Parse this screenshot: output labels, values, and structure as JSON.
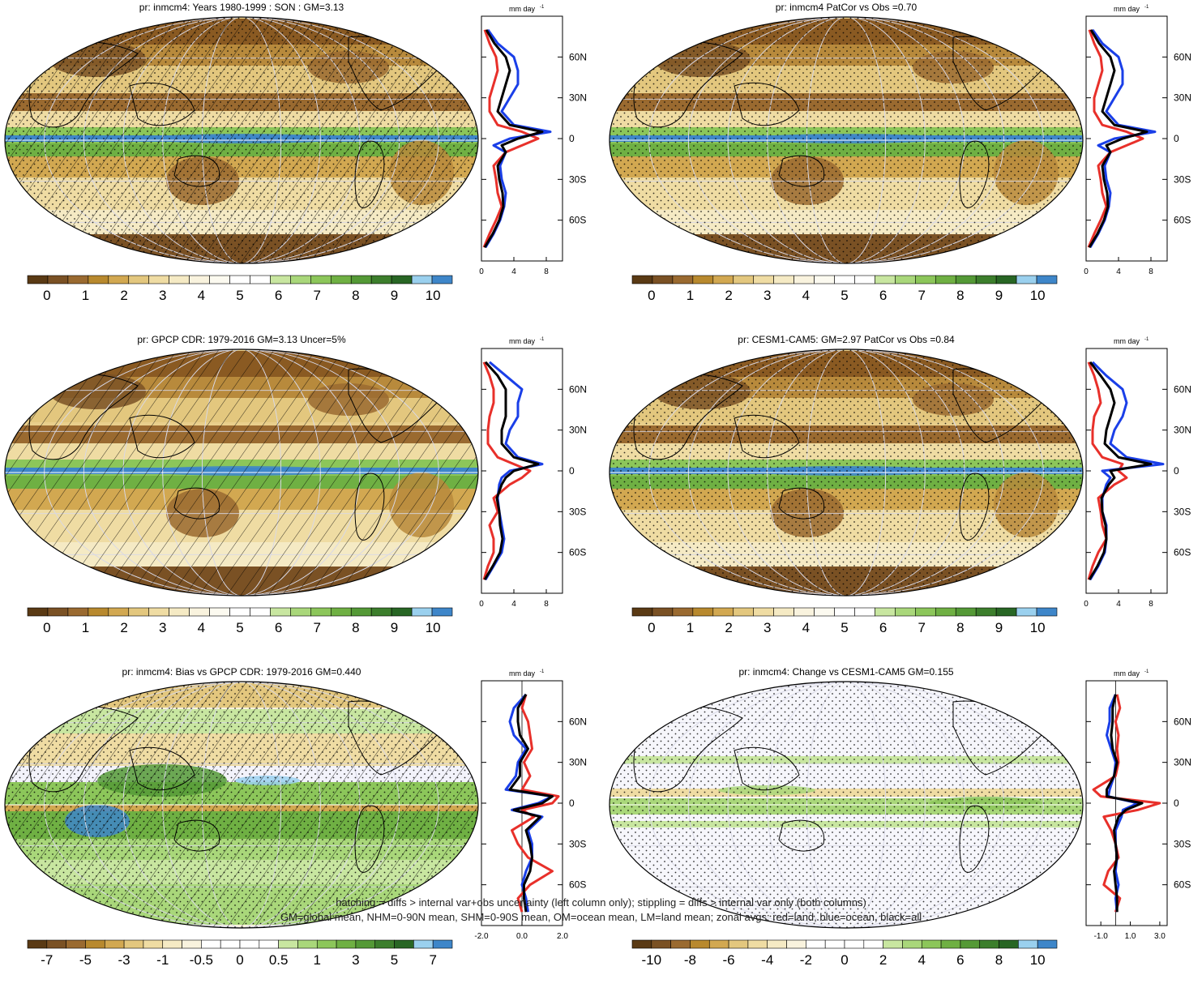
{
  "panels": [
    {
      "title": "pr: inmcm4: Years 1980-1999 : SON : GM=3.13",
      "map_style": "precip",
      "overlay": "hatch+stipple",
      "cb_labels": [
        "0",
        "1",
        "2",
        "3",
        "4",
        "5",
        "6",
        "7",
        "8",
        "9",
        "10"
      ],
      "cb_scheme": "precip",
      "zonal_xticks": [
        "0",
        "4",
        "8"
      ],
      "zonal_xlim": [
        0,
        10
      ]
    },
    {
      "title": "pr: inmcm4 PatCor vs Obs =0.70",
      "map_style": "precip",
      "overlay": "stipple",
      "cb_labels": [
        "0",
        "1",
        "2",
        "3",
        "4",
        "5",
        "6",
        "7",
        "8",
        "9",
        "10"
      ],
      "cb_scheme": "precip",
      "zonal_xticks": [
        "0",
        "4",
        "8"
      ],
      "zonal_xlim": [
        0,
        10
      ]
    },
    {
      "title": "pr: GPCP CDR: 1979-2016 GM=3.13 Uncer=5%",
      "map_style": "precip",
      "overlay": "hatch",
      "cb_labels": [
        "0",
        "1",
        "2",
        "3",
        "4",
        "5",
        "6",
        "7",
        "8",
        "9",
        "10"
      ],
      "cb_scheme": "precip",
      "zonal_xticks": [
        "0",
        "4",
        "8"
      ],
      "zonal_xlim": [
        0,
        10
      ]
    },
    {
      "title": "pr: CESM1-CAM5: GM=2.97 PatCor vs Obs =0.84",
      "map_style": "precip",
      "overlay": "stipple",
      "cb_labels": [
        "0",
        "1",
        "2",
        "3",
        "4",
        "5",
        "6",
        "7",
        "8",
        "9",
        "10"
      ],
      "cb_scheme": "precip",
      "zonal_xticks": [
        "0",
        "4",
        "8"
      ],
      "zonal_xlim": [
        0,
        10
      ]
    },
    {
      "title": "pr: inmcm4: Bias vs GPCP CDR: 1979-2016  GM=0.440",
      "map_style": "bias",
      "overlay": "hatch+stipple",
      "cb_labels": [
        "-7",
        "-5",
        "-3",
        "-1",
        "-0.5",
        "0",
        "0.5",
        "1",
        "3",
        "5",
        "7"
      ],
      "cb_scheme": "diff",
      "zonal_xticks": [
        "-2.0",
        "0.0",
        "2.0"
      ],
      "zonal_xlim": [
        -2,
        2
      ]
    },
    {
      "title": "pr: inmcm4: Change vs CESM1-CAM5 GM=0.155",
      "map_style": "change",
      "overlay": "stipple",
      "cb_labels": [
        "-10",
        "-8",
        "-6",
        "-4",
        "-2",
        "0",
        "2",
        "4",
        "6",
        "8",
        "10"
      ],
      "cb_scheme": "diff",
      "zonal_xticks": [
        "-1.0",
        "1.0",
        "3.0"
      ],
      "zonal_xlim": [
        -2,
        3.5
      ]
    }
  ],
  "zonal_unit": "mm day",
  "zonal_unit_exp": "-1",
  "lat_ticks": [
    "60N",
    "30N",
    "0",
    "30S",
    "60S"
  ],
  "colors": {
    "land": "#e8302a",
    "ocean": "#1a3fe8",
    "all": "#000000",
    "precip_scale": [
      "#5a3a14",
      "#7a5124",
      "#9a6a30",
      "#b8892e",
      "#d2a851",
      "#e3c77e",
      "#efdca3",
      "#f5eac4",
      "#f9f3de",
      "#fcfaf0",
      "#ffffff",
      "#ffffff",
      "#c8e6a0",
      "#a9d77a",
      "#8cc65a",
      "#6fb043",
      "#549936",
      "#3c7e2c",
      "#286624",
      "#9ad0ee",
      "#3e86c9"
    ],
    "diff_scale": [
      "#5a3a14",
      "#7a5124",
      "#9a6a30",
      "#b8892e",
      "#d2a851",
      "#e3c77e",
      "#efdca3",
      "#f5eac4",
      "#f9f3de",
      "#ffffff",
      "#ffffff",
      "#ffffff",
      "#ffffff",
      "#c8e6a0",
      "#a9d77a",
      "#8cc65a",
      "#6fb043",
      "#549936",
      "#3c7e2c",
      "#286624",
      "#9ad0ee",
      "#3e86c9"
    ]
  },
  "chart_data": [
    {
      "type": "line",
      "title": "pr: inmcm4: Years 1980-1999 : SON : GM=3.13",
      "xlabel": "mm day-1",
      "xlim": [
        0,
        10
      ],
      "ylim": [
        -90,
        90
      ],
      "y": [
        -80,
        -70,
        -60,
        -50,
        -40,
        -30,
        -20,
        -10,
        -5,
        0,
        5,
        10,
        20,
        30,
        40,
        50,
        60,
        70,
        80
      ],
      "series": [
        {
          "name": "land",
          "values": [
            0.3,
            1.0,
            1.8,
            2.5,
            2.0,
            1.8,
            1.5,
            3.0,
            5.0,
            7.0,
            5.0,
            2.0,
            1.0,
            1.0,
            1.5,
            2.0,
            1.8,
            1.0,
            0.4
          ]
        },
        {
          "name": "ocean",
          "values": [
            0.5,
            1.5,
            2.3,
            2.8,
            3.0,
            2.5,
            2.3,
            3.0,
            1.5,
            3.5,
            8.5,
            4.0,
            2.5,
            3.5,
            4.5,
            4.5,
            4.0,
            2.0,
            0.8
          ]
        },
        {
          "name": "all",
          "values": [
            0.4,
            1.4,
            2.2,
            2.7,
            2.6,
            2.2,
            2.0,
            3.0,
            2.5,
            4.5,
            7.5,
            3.5,
            2.0,
            2.5,
            3.0,
            3.5,
            3.0,
            1.6,
            0.6
          ]
        }
      ]
    },
    {
      "type": "line",
      "title": "pr: inmcm4 PatCor vs Obs =0.70",
      "xlabel": "mm day-1",
      "xlim": [
        0,
        10
      ],
      "ylim": [
        -90,
        90
      ],
      "y": [
        -80,
        -70,
        -60,
        -50,
        -40,
        -30,
        -20,
        -10,
        -5,
        0,
        5,
        10,
        20,
        30,
        40,
        50,
        60,
        70,
        80
      ],
      "series": [
        {
          "name": "land",
          "values": [
            0.3,
            1.0,
            1.8,
            2.5,
            2.0,
            1.8,
            1.5,
            3.0,
            5.0,
            7.0,
            5.0,
            2.0,
            1.0,
            1.0,
            1.5,
            2.0,
            1.8,
            1.0,
            0.4
          ]
        },
        {
          "name": "ocean",
          "values": [
            0.5,
            1.5,
            2.3,
            2.8,
            3.0,
            2.5,
            2.3,
            3.0,
            1.5,
            3.5,
            8.5,
            4.0,
            2.5,
            3.5,
            4.5,
            4.5,
            4.0,
            2.0,
            0.8
          ]
        },
        {
          "name": "all",
          "values": [
            0.4,
            1.4,
            2.2,
            2.7,
            2.6,
            2.2,
            2.0,
            3.0,
            2.5,
            4.5,
            7.5,
            3.5,
            2.0,
            2.5,
            3.0,
            3.5,
            3.0,
            1.6,
            0.6
          ]
        }
      ]
    },
    {
      "type": "line",
      "title": "pr: GPCP CDR: 1979-2016 GM=3.13 Uncer=5%",
      "xlabel": "mm day-1",
      "xlim": [
        0,
        10
      ],
      "ylim": [
        -90,
        90
      ],
      "y": [
        -80,
        -70,
        -60,
        -50,
        -40,
        -30,
        -20,
        -10,
        -5,
        0,
        5,
        10,
        20,
        30,
        40,
        50,
        60,
        70,
        80
      ],
      "series": [
        {
          "name": "land",
          "values": [
            0.3,
            0.8,
            1.5,
            1.5,
            1.0,
            2.0,
            1.5,
            3.5,
            5.0,
            6.0,
            4.0,
            2.0,
            0.8,
            0.8,
            1.0,
            1.5,
            1.5,
            1.0,
            0.3
          ]
        },
        {
          "name": "ocean",
          "values": [
            0.5,
            1.5,
            2.5,
            2.8,
            2.5,
            2.2,
            2.0,
            2.2,
            2.5,
            3.5,
            7.5,
            4.5,
            3.0,
            3.5,
            4.5,
            4.5,
            5.0,
            3.0,
            1.0
          ]
        },
        {
          "name": "all",
          "values": [
            0.4,
            1.4,
            2.3,
            2.6,
            2.3,
            2.2,
            1.9,
            2.5,
            3.0,
            4.0,
            7.0,
            4.0,
            2.5,
            2.5,
            3.0,
            3.0,
            3.0,
            2.0,
            0.5
          ]
        }
      ]
    },
    {
      "type": "line",
      "title": "pr: CESM1-CAM5: GM=2.97 PatCor vs Obs =0.84",
      "xlabel": "mm day-1",
      "xlim": [
        0,
        10
      ],
      "ylim": [
        -90,
        90
      ],
      "y": [
        -80,
        -70,
        -60,
        -50,
        -40,
        -30,
        -20,
        -10,
        -5,
        0,
        5,
        10,
        20,
        30,
        40,
        50,
        60,
        70,
        80
      ],
      "series": [
        {
          "name": "land",
          "values": [
            0.3,
            0.8,
            1.5,
            2.5,
            2.0,
            1.8,
            1.5,
            3.5,
            5.0,
            4.0,
            4.5,
            2.0,
            0.8,
            0.8,
            1.0,
            1.8,
            1.5,
            1.0,
            0.3
          ]
        },
        {
          "name": "ocean",
          "values": [
            0.5,
            1.5,
            2.3,
            2.5,
            2.5,
            2.0,
            2.0,
            2.5,
            3.0,
            2.0,
            9.5,
            5.0,
            3.0,
            3.5,
            4.5,
            5.0,
            4.5,
            2.5,
            0.8
          ]
        },
        {
          "name": "all",
          "values": [
            0.4,
            1.4,
            2.2,
            2.5,
            2.4,
            2.0,
            1.9,
            2.8,
            3.5,
            3.0,
            8.0,
            4.0,
            2.3,
            2.5,
            3.0,
            3.5,
            3.0,
            1.8,
            0.5
          ]
        }
      ]
    },
    {
      "type": "line",
      "title": "pr: inmcm4: Bias vs GPCP CDR: 1979-2016  GM=0.440",
      "xlabel": "mm day-1",
      "xlim": [
        -2,
        2
      ],
      "ylim": [
        -90,
        90
      ],
      "y": [
        -80,
        -70,
        -60,
        -50,
        -40,
        -30,
        -20,
        -10,
        -5,
        0,
        5,
        10,
        20,
        30,
        40,
        50,
        60,
        70,
        80
      ],
      "series": [
        {
          "name": "land",
          "values": [
            0.0,
            -0.2,
            0.4,
            1.5,
            0.3,
            -0.2,
            -0.5,
            0.6,
            0.0,
            1.5,
            1.8,
            0.0,
            0.4,
            0.1,
            0.5,
            0.4,
            0.3,
            0.0,
            0.2
          ]
        },
        {
          "name": "ocean",
          "values": [
            0.3,
            0.2,
            0.0,
            0.2,
            0.5,
            0.5,
            0.3,
            1.0,
            -0.5,
            0.8,
            1.5,
            -0.8,
            -0.3,
            -0.2,
            0.2,
            -0.4,
            -0.6,
            -0.4,
            0.2
          ]
        },
        {
          "name": "all",
          "values": [
            0.2,
            0.1,
            0.1,
            0.4,
            0.5,
            0.4,
            0.2,
            0.9,
            -0.4,
            1.0,
            1.5,
            -0.6,
            -0.1,
            -0.1,
            0.3,
            -0.1,
            -0.2,
            -0.2,
            0.2
          ]
        }
      ]
    },
    {
      "type": "line",
      "title": "pr: inmcm4: Change vs CESM1-CAM5 GM=0.155",
      "xlabel": "mm day-1",
      "xlim": [
        -2,
        3.5
      ],
      "ylim": [
        -90,
        90
      ],
      "y": [
        -80,
        -70,
        -60,
        -50,
        -40,
        -30,
        -20,
        -10,
        -5,
        0,
        5,
        10,
        20,
        30,
        40,
        50,
        60,
        70,
        80
      ],
      "series": [
        {
          "name": "land",
          "values": [
            0.0,
            0.3,
            -0.8,
            -0.5,
            0.2,
            0.0,
            -0.3,
            -0.8,
            1.5,
            3.0,
            -1.0,
            -1.5,
            0.0,
            0.2,
            0.1,
            0.2,
            0.0,
            0.3,
            0.1
          ]
        },
        {
          "name": "ocean",
          "values": [
            0.1,
            0.0,
            0.2,
            0.0,
            0.1,
            0.0,
            0.0,
            0.4,
            0.5,
            1.5,
            -0.5,
            -0.4,
            -0.1,
            0.0,
            -0.3,
            -0.6,
            -0.4,
            -0.4,
            0.0
          ]
        },
        {
          "name": "all",
          "values": [
            0.1,
            0.1,
            0.0,
            -0.1,
            0.1,
            0.0,
            -0.1,
            0.2,
            0.7,
            1.8,
            -0.6,
            -0.6,
            -0.1,
            0.1,
            -0.2,
            -0.3,
            -0.2,
            -0.2,
            0.0
          ]
        }
      ]
    }
  ],
  "footnote_line1": "hatching = diffs > internal var+obs uncertainty (left column only); stippling = diffs > internal var only (both columns)",
  "footnote_line2": "GM=global mean, NHM=0-90N mean, SHM=0-90S mean, OM=ocean mean, LM=land mean; zonal avgs: red=land, blue=ocean, black=all"
}
